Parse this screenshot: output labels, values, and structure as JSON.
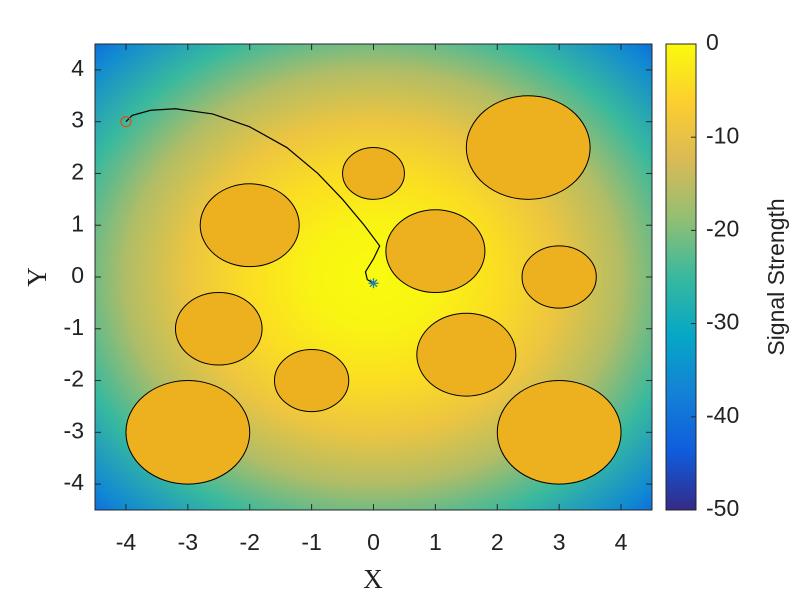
{
  "chart_data": {
    "type": "heatmap",
    "xlabel": "X",
    "ylabel": "Y",
    "colorbar_label": "Signal Strength",
    "xlim": [
      -4.5,
      4.5
    ],
    "ylim": [
      -4.5,
      4.5
    ],
    "xticks": [
      -4,
      -3,
      -2,
      -1,
      0,
      1,
      2,
      3,
      4
    ],
    "yticks": [
      -4,
      -3,
      -2,
      -1,
      0,
      1,
      2,
      3,
      4
    ],
    "clim": [
      -50,
      0
    ],
    "cticks": [
      -50,
      -40,
      -30,
      -20,
      -10,
      0
    ],
    "colormap": [
      "#352a87",
      "#0f5cdd",
      "#1481d6",
      "#06a7c6",
      "#38b99e",
      "#92bf73",
      "#d9ba56",
      "#fcce2e",
      "#f9fb0e"
    ],
    "signal_profile": {
      "center": [
        0,
        0
      ],
      "distance": [
        0,
        1,
        2,
        3,
        4,
        5,
        6,
        6.4
      ],
      "values": [
        0,
        -1,
        -4,
        -9,
        -16,
        -25,
        -36,
        -41
      ]
    },
    "obstacle_color": "#edb120",
    "obstacles": [
      {
        "x": 0,
        "y": 2,
        "r": 0.5
      },
      {
        "x": -2,
        "y": 1,
        "r": 0.8
      },
      {
        "x": 1,
        "y": 0.5,
        "r": 0.8
      },
      {
        "x": 2.5,
        "y": 2.5,
        "r": 1
      },
      {
        "x": 3,
        "y": 0,
        "r": 0.6
      },
      {
        "x": -2.5,
        "y": -1,
        "r": 0.7
      },
      {
        "x": -1,
        "y": -2,
        "r": 0.6
      },
      {
        "x": 1.5,
        "y": -1.5,
        "r": 0.8
      },
      {
        "x": -3,
        "y": -3,
        "r": 1
      },
      {
        "x": 3,
        "y": -3,
        "r": 1
      }
    ],
    "path": {
      "color": "#000000",
      "x": [
        -4,
        -3.9,
        -3.6,
        -3.2,
        -2.6,
        -2.0,
        -1.4,
        -0.9,
        -0.5,
        -0.15,
        0.1,
        0.0,
        -0.13,
        -0.1,
        0.0
      ],
      "y": [
        3,
        3.12,
        3.22,
        3.25,
        3.15,
        2.9,
        2.5,
        2.0,
        1.5,
        1.0,
        0.6,
        0.35,
        0.1,
        -0.05,
        -0.12
      ]
    },
    "start": {
      "x": -4,
      "y": 3,
      "color": "#d95319"
    },
    "goal": {
      "x": 0,
      "y": -0.12,
      "color": "#1f7fa8"
    }
  }
}
